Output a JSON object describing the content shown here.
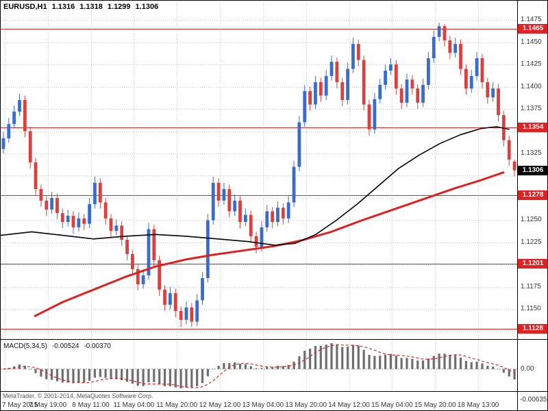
{
  "header": {
    "symbol": "EURUSD,H1",
    "open": "1.1316",
    "high": "1.1318",
    "low": "1.1299",
    "close": "1.1306"
  },
  "footer": {
    "copyright": "MetaTrader, © 2001-2014, MetaQuotes Software Corp."
  },
  "chart_data": [
    {
      "type": "candlestick",
      "title": "EURUSD,H1",
      "timeframe": "H1",
      "y_min": 1.1118,
      "y_max": 1.1492,
      "y_tick_step": 0.0025,
      "y_ticks": [
        "1.1475",
        "1.1450",
        "1.1425",
        "1.1400",
        "1.1375",
        "1.1350",
        "1.1325",
        "1.1300",
        "1.1275",
        "1.1250",
        "1.1225",
        "1.1200",
        "1.1175",
        "1.1150",
        "1.1125"
      ],
      "x_labels": [
        "7 May 2015",
        "7 May 19:00",
        "8 May 11:00",
        "11 May 04:00",
        "11 May 20:00",
        "12 May 12:00",
        "13 May 04:00",
        "13 May 20:00",
        "14 May 12:00",
        "15 May 04:00",
        "15 May 20:00",
        "18 May 13:00"
      ],
      "levels": [
        {
          "price": 1.1465,
          "label": "1.1465",
          "color": "#e22222"
        },
        {
          "price": 1.1354,
          "label": "1.1354",
          "color": "#e22222"
        },
        {
          "price": 1.1278,
          "label": "1.1278",
          "color": "#e22222"
        },
        {
          "price": 1.1201,
          "label": "1.1201",
          "color": "#e22222"
        },
        {
          "price": 1.1128,
          "label": "1.1128",
          "color": "#e22222"
        }
      ],
      "current_price": {
        "price": 1.1306,
        "label": "1.1306",
        "color": "#000000"
      },
      "overlays": [
        {
          "name": "ma-slow-red",
          "color": "#e01f1f",
          "width": 3,
          "points": [
            [
              0.065,
              1.1142
            ],
            [
              0.12,
              1.1158
            ],
            [
              0.18,
              1.1172
            ],
            [
              0.24,
              1.1186
            ],
            [
              0.3,
              1.1198
            ],
            [
              0.36,
              1.1206
            ],
            [
              0.41,
              1.1211
            ],
            [
              0.47,
              1.1216
            ],
            [
              0.53,
              1.1221
            ],
            [
              0.58,
              1.1227
            ],
            [
              0.64,
              1.1237
            ],
            [
              0.7,
              1.125
            ],
            [
              0.76,
              1.1262
            ],
            [
              0.82,
              1.1274
            ],
            [
              0.88,
              1.1286
            ],
            [
              0.93,
              1.1295
            ],
            [
              0.975,
              1.1304
            ]
          ]
        },
        {
          "name": "ma-fast-black",
          "color": "#000000",
          "width": 1.6,
          "points": [
            [
              0.0,
              1.1233
            ],
            [
              0.06,
              1.1237
            ],
            [
              0.12,
              1.1233
            ],
            [
              0.18,
              1.1229
            ],
            [
              0.24,
              1.1232
            ],
            [
              0.3,
              1.1234
            ],
            [
              0.36,
              1.1232
            ],
            [
              0.42,
              1.1229
            ],
            [
              0.48,
              1.1226
            ],
            [
              0.53,
              1.1222
            ],
            [
              0.57,
              1.1224
            ],
            [
              0.61,
              1.1234
            ],
            [
              0.65,
              1.125
            ],
            [
              0.69,
              1.1268
            ],
            [
              0.73,
              1.1288
            ],
            [
              0.77,
              1.1308
            ],
            [
              0.81,
              1.1323
            ],
            [
              0.85,
              1.1336
            ],
            [
              0.89,
              1.1346
            ],
            [
              0.93,
              1.1353
            ],
            [
              0.96,
              1.1355
            ],
            [
              0.985,
              1.1352
            ]
          ]
        }
      ],
      "colors": {
        "up": "#3a6ccc",
        "down": "#d94040",
        "grid": "#c6c6c6",
        "level_line": "#e22222"
      },
      "bars": [
        [
          1.133,
          1.1349,
          1.1325,
          1.1342
        ],
        [
          1.1342,
          1.1365,
          1.1337,
          1.1358
        ],
        [
          1.1358,
          1.1379,
          1.1353,
          1.1372
        ],
        [
          1.1372,
          1.1392,
          1.1367,
          1.1385
        ],
        [
          1.1385,
          1.139,
          1.1343,
          1.135
        ],
        [
          1.135,
          1.1355,
          1.1308,
          1.1315
        ],
        [
          1.1315,
          1.132,
          1.1278,
          1.1285
        ],
        [
          1.1285,
          1.129,
          1.1265,
          1.1272
        ],
        [
          1.1272,
          1.1277,
          1.1255,
          1.1262
        ],
        [
          1.1262,
          1.1282,
          1.1257,
          1.1275
        ],
        [
          1.1275,
          1.128,
          1.1251,
          1.1258
        ],
        [
          1.1258,
          1.1263,
          1.1241,
          1.1248
        ],
        [
          1.1248,
          1.1262,
          1.1243,
          1.1255
        ],
        [
          1.1255,
          1.126,
          1.1235,
          1.1242
        ],
        [
          1.1242,
          1.1259,
          1.1237,
          1.1252
        ],
        [
          1.1252,
          1.1257,
          1.1239,
          1.1246
        ],
        [
          1.1246,
          1.1275,
          1.1241,
          1.1268
        ],
        [
          1.1268,
          1.1299,
          1.1263,
          1.1292
        ],
        [
          1.1292,
          1.1297,
          1.1263,
          1.127
        ],
        [
          1.127,
          1.1275,
          1.1245,
          1.1252
        ],
        [
          1.1252,
          1.1257,
          1.1231,
          1.1238
        ],
        [
          1.1238,
          1.1251,
          1.1233,
          1.1244
        ],
        [
          1.1244,
          1.1249,
          1.1221,
          1.1228
        ],
        [
          1.1228,
          1.1233,
          1.1205,
          1.1212
        ],
        [
          1.1212,
          1.1217,
          1.1188,
          1.1195
        ],
        [
          1.1195,
          1.12,
          1.1171,
          1.1178
        ],
        [
          1.1178,
          1.1195,
          1.1173,
          1.1188
        ],
        [
          1.1188,
          1.1247,
          1.1183,
          1.124
        ],
        [
          1.124,
          1.1245,
          1.1198,
          1.1205
        ],
        [
          1.1205,
          1.121,
          1.1165,
          1.1172
        ],
        [
          1.1172,
          1.1177,
          1.1148,
          1.1155
        ],
        [
          1.1155,
          1.1175,
          1.115,
          1.1168
        ],
        [
          1.1168,
          1.1173,
          1.1141,
          1.1148
        ],
        [
          1.1148,
          1.1153,
          1.113,
          1.1138
        ],
        [
          1.1138,
          1.1159,
          1.1133,
          1.1152
        ],
        [
          1.1152,
          1.1157,
          1.113,
          1.1136
        ],
        [
          1.1136,
          1.1167,
          1.1131,
          1.116
        ],
        [
          1.116,
          1.1192,
          1.1155,
          1.1185
        ],
        [
          1.1185,
          1.1257,
          1.118,
          1.125
        ],
        [
          1.125,
          1.1299,
          1.1245,
          1.1292
        ],
        [
          1.1292,
          1.1297,
          1.1265,
          1.1272
        ],
        [
          1.1272,
          1.1292,
          1.1267,
          1.1285
        ],
        [
          1.1285,
          1.129,
          1.1253,
          1.126
        ],
        [
          1.126,
          1.1279,
          1.1255,
          1.1272
        ],
        [
          1.1272,
          1.1277,
          1.1241,
          1.1248
        ],
        [
          1.1248,
          1.1263,
          1.1243,
          1.1256
        ],
        [
          1.1256,
          1.1261,
          1.1225,
          1.1232
        ],
        [
          1.1232,
          1.1237,
          1.1213,
          1.122
        ],
        [
          1.122,
          1.1249,
          1.1215,
          1.1242
        ],
        [
          1.1242,
          1.1267,
          1.1237,
          1.126
        ],
        [
          1.126,
          1.1265,
          1.1241,
          1.1248
        ],
        [
          1.1248,
          1.1271,
          1.1243,
          1.1264
        ],
        [
          1.1264,
          1.1269,
          1.1245,
          1.1252
        ],
        [
          1.1252,
          1.1277,
          1.1247,
          1.127
        ],
        [
          1.127,
          1.1317,
          1.1265,
          1.131
        ],
        [
          1.131,
          1.1367,
          1.1305,
          1.136
        ],
        [
          1.136,
          1.1402,
          1.1355,
          1.1395
        ],
        [
          1.1395,
          1.14,
          1.1373,
          1.138
        ],
        [
          1.138,
          1.1412,
          1.1375,
          1.1405
        ],
        [
          1.1405,
          1.141,
          1.1383,
          1.139
        ],
        [
          1.139,
          1.1419,
          1.1385,
          1.1412
        ],
        [
          1.1412,
          1.1435,
          1.1407,
          1.1428
        ],
        [
          1.1428,
          1.1433,
          1.1398,
          1.1405
        ],
        [
          1.1405,
          1.141,
          1.1378,
          1.1385
        ],
        [
          1.1385,
          1.1427,
          1.138,
          1.142
        ],
        [
          1.142,
          1.1455,
          1.1415,
          1.1448
        ],
        [
          1.1448,
          1.1453,
          1.1423,
          1.143
        ],
        [
          1.143,
          1.1435,
          1.1373,
          1.138
        ],
        [
          1.138,
          1.1385,
          1.1345,
          1.1352
        ],
        [
          1.1352,
          1.1393,
          1.1347,
          1.1386
        ],
        [
          1.1386,
          1.1409,
          1.1381,
          1.1402
        ],
        [
          1.1402,
          1.1425,
          1.1397,
          1.1418
        ],
        [
          1.1418,
          1.1432,
          1.1413,
          1.1425
        ],
        [
          1.1425,
          1.143,
          1.1391,
          1.1398
        ],
        [
          1.1398,
          1.1403,
          1.1375,
          1.1382
        ],
        [
          1.1382,
          1.1415,
          1.1377,
          1.1408
        ],
        [
          1.1408,
          1.1413,
          1.1391,
          1.1398
        ],
        [
          1.1398,
          1.1403,
          1.1375,
          1.1382
        ],
        [
          1.1382,
          1.1409,
          1.1377,
          1.1402
        ],
        [
          1.1402,
          1.1439,
          1.1397,
          1.1432
        ],
        [
          1.1432,
          1.1463,
          1.1427,
          1.1456
        ],
        [
          1.1456,
          1.1472,
          1.1451,
          1.1468
        ],
        [
          1.1468,
          1.147,
          1.1445,
          1.1452
        ],
        [
          1.1452,
          1.1457,
          1.1431,
          1.1438
        ],
        [
          1.1438,
          1.1455,
          1.1433,
          1.1448
        ],
        [
          1.1448,
          1.1453,
          1.1413,
          1.142
        ],
        [
          1.142,
          1.1425,
          1.1391,
          1.1398
        ],
        [
          1.1398,
          1.1419,
          1.1393,
          1.1412
        ],
        [
          1.1412,
          1.1439,
          1.1407,
          1.1432
        ],
        [
          1.1432,
          1.1437,
          1.1398,
          1.1405
        ],
        [
          1.1405,
          1.141,
          1.1381,
          1.1388
        ],
        [
          1.1388,
          1.1405,
          1.1383,
          1.1398
        ],
        [
          1.1398,
          1.1403,
          1.1361,
          1.1368
        ],
        [
          1.1368,
          1.1373,
          1.1333,
          1.134
        ],
        [
          1.134,
          1.1345,
          1.1311,
          1.1318
        ],
        [
          1.1316,
          1.1318,
          1.1299,
          1.1306
        ]
      ]
    },
    {
      "type": "macd",
      "label": "MACD(5,34,5)",
      "value_main": "-0.00524",
      "value_signal": "-0.00370",
      "params": {
        "fast": 5,
        "slow": 34,
        "signal": 5
      },
      "y_labels": [
        "0.00",
        "-0.00635"
      ],
      "colors": {
        "histogram": "#6e6e6e",
        "signal": "#dd2222",
        "grid": "#c6c6c6"
      },
      "source": "computed from main chart bars"
    }
  ]
}
